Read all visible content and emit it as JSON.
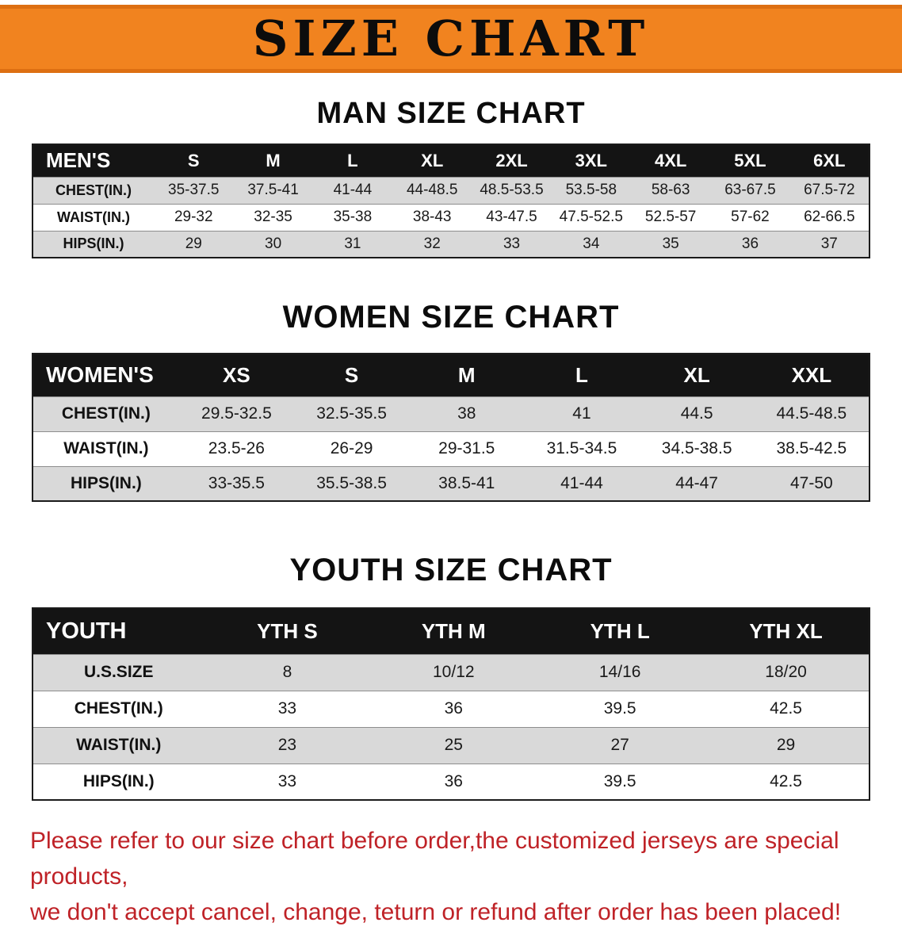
{
  "banner": {
    "title": "SIZE CHART",
    "background_color": "#f1831f"
  },
  "chart_data": [
    {
      "type": "table",
      "title": "MAN SIZE CHART",
      "columns": [
        "MEN'S",
        "S",
        "M",
        "L",
        "XL",
        "2XL",
        "3XL",
        "4XL",
        "5XL",
        "6XL"
      ],
      "rows": [
        [
          "CHEST(IN.)",
          "35-37.5",
          "37.5-41",
          "41-44",
          "44-48.5",
          "48.5-53.5",
          "53.5-58",
          "58-63",
          "63-67.5",
          "67.5-72"
        ],
        [
          "WAIST(IN.)",
          "29-32",
          "32-35",
          "35-38",
          "38-43",
          "43-47.5",
          "47.5-52.5",
          "52.5-57",
          "57-62",
          "62-66.5"
        ],
        [
          "HIPS(IN.)",
          "29",
          "30",
          "31",
          "32",
          "33",
          "34",
          "35",
          "36",
          "37"
        ]
      ]
    },
    {
      "type": "table",
      "title": "WOMEN SIZE CHART",
      "columns": [
        "WOMEN'S",
        "XS",
        "S",
        "M",
        "L",
        "XL",
        "XXL"
      ],
      "rows": [
        [
          "CHEST(IN.)",
          "29.5-32.5",
          "32.5-35.5",
          "38",
          "41",
          "44.5",
          "44.5-48.5"
        ],
        [
          "WAIST(IN.)",
          "23.5-26",
          "26-29",
          "29-31.5",
          "31.5-34.5",
          "34.5-38.5",
          "38.5-42.5"
        ],
        [
          "HIPS(IN.)",
          "33-35.5",
          "35.5-38.5",
          "38.5-41",
          "41-44",
          "44-47",
          "47-50"
        ]
      ]
    },
    {
      "type": "table",
      "title": "YOUTH SIZE CHART",
      "columns": [
        "YOUTH",
        "YTH S",
        "YTH M",
        "YTH L",
        "YTH XL"
      ],
      "rows": [
        [
          "U.S.SIZE",
          "8",
          "10/12",
          "14/16",
          "18/20"
        ],
        [
          "CHEST(IN.)",
          "33",
          "36",
          "39.5",
          "42.5"
        ],
        [
          "WAIST(IN.)",
          "23",
          "25",
          "27",
          "29"
        ],
        [
          "HIPS(IN.)",
          "33",
          "36",
          "39.5",
          "42.5"
        ]
      ]
    }
  ],
  "footer": {
    "line1": "Please refer to our size chart before order,the customized jerseys are special products,",
    "line2": "we don't accept cancel, change, teturn or refund after order has been placed!",
    "text_color": "#bf2227"
  }
}
